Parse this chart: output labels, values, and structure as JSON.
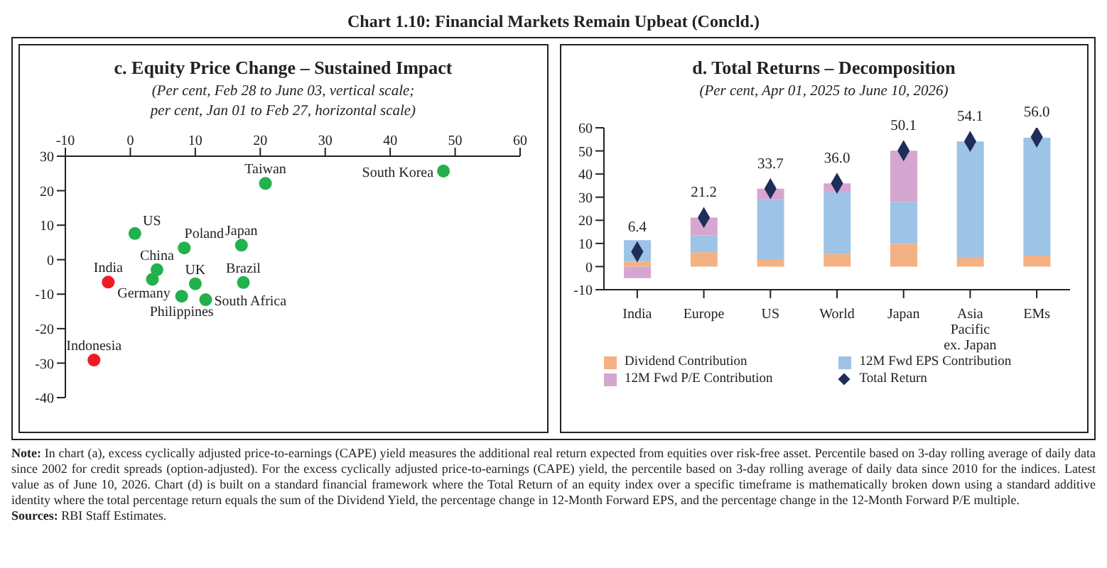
{
  "chart_data": [
    {
      "type": "scatter",
      "title": "c. Equity Price Change – Sustained Impact",
      "subtitle": "(Per cent, Feb 28 to June 03, vertical scale;\nper cent, Jan 01 to Feb 27, horizontal scale)",
      "xlim": [
        -10,
        60
      ],
      "xticks": [
        -10,
        0,
        10,
        20,
        30,
        40,
        50,
        60
      ],
      "ylim": [
        -40,
        30
      ],
      "yticks": [
        -40,
        -30,
        -20,
        -10,
        0,
        10,
        20,
        30
      ],
      "marker": "circle",
      "series": [
        {
          "color": "#22b14c",
          "x": [
            48.2,
            20.8,
            0.7,
            8.3,
            17.1,
            4.1,
            3.4,
            10.0,
            17.4,
            7.9,
            11.6
          ],
          "values": [
            25.7,
            22.1,
            7.6,
            3.4,
            4.2,
            -2.9,
            -5.7,
            -7.0,
            -6.6,
            -10.6,
            -11.6
          ]
        },
        {
          "color": "#ed1c24",
          "x": [
            -3.4,
            -5.6
          ],
          "values": [
            -6.5,
            -29.1
          ]
        }
      ],
      "annotations": [
        "Chart 1.10: Financial Markets Remain Upbeat (Concld.)",
        {
          "text": "South Korea",
          "x": 48.2,
          "y": 25.7
        },
        {
          "text": "Taiwan",
          "x": 20.8,
          "y": 22.1
        },
        {
          "text": "US",
          "x": 0.7,
          "y": 7.6
        },
        {
          "text": "Poland",
          "x": 8.3,
          "y": 3.4
        },
        {
          "text": "Japan",
          "x": 17.1,
          "y": 4.2
        },
        {
          "text": "China",
          "x": 4.1,
          "y": -2.9
        },
        {
          "text": "Germany",
          "x": 3.4,
          "y": -5.7
        },
        {
          "text": "UK",
          "x": 10.0,
          "y": -7.0
        },
        {
          "text": "Brazil",
          "x": 17.4,
          "y": -6.6
        },
        {
          "text": "Philippines",
          "x": 7.9,
          "y": -10.6
        },
        {
          "text": "South Africa",
          "x": 11.6,
          "y": -11.6
        },
        {
          "text": "India",
          "x": -3.4,
          "y": -6.5
        },
        {
          "text": "Indonesia",
          "x": -5.6,
          "y": -29.1
        }
      ]
    },
    {
      "type": "bar",
      "title": "d. Total Returns – Decomposition",
      "subtitle": "(Per cent, Apr 01, 2025 to June 10, 2026)",
      "categories": [
        "India",
        "Europe",
        "US",
        "World",
        "Japan",
        "Asia Pacific ex. Japan",
        "EMs"
      ],
      "stacked": true,
      "ylim": [
        -10,
        60
      ],
      "yticks": [
        -10,
        0,
        10,
        20,
        30,
        40,
        50,
        60
      ],
      "legend": "bottom",
      "series": [
        {
          "name": "Dividend Contribution",
          "color": "#f4b183",
          "values": [
            2.2,
            6.2,
            3.2,
            5.4,
            9.9,
            4.1,
            4.7
          ]
        },
        {
          "name": "12M Fwd EPS Contribution",
          "color": "#9dc3e6",
          "values": [
            9.2,
            7.3,
            25.6,
            26.7,
            18.1,
            50.0,
            51.0
          ]
        },
        {
          "name": "12M Fwd P/E Contribution",
          "color": "#d5a6d0",
          "values": [
            -5.0,
            7.7,
            4.9,
            3.9,
            22.1,
            null,
            null
          ]
        },
        {
          "name": "Total Return",
          "type": "scatter",
          "marker": "diamond",
          "color": "#1f2d5a",
          "values": [
            6.4,
            21.2,
            33.7,
            36.0,
            50.1,
            54.1,
            56.0
          ],
          "value_labels": [
            "6.4",
            "21.2",
            "33.7",
            "36.0",
            "50.1",
            "54.1",
            "56.0"
          ]
        }
      ],
      "annotations": [
        "Note: In chart (a), excess cyclically adjusted price-to-earnings (CAPE) yield measures the additional real return expected from equities over risk-free asset. Percentile based on 3-day rolling average of daily data since 2002 for credit spreads (option-adjusted). For the excess cyclically adjusted price-to-earnings (CAPE) yield, the percentile based on 3-day rolling average of daily data since 2010 for the indices. Latest value as of June 10, 2026. Chart (d) is built on a standard financial framework where the Total Return of an equity index over a specific timeframe is mathematically broken down using a standard additive identity where the total percentage return equals the sum of the Dividend Yield, the percentage change in 12-Month Forward EPS, and the percentage change in the 12-Month Forward P/E multiple.",
        "Sources: RBI Staff Estimates."
      ]
    }
  ]
}
